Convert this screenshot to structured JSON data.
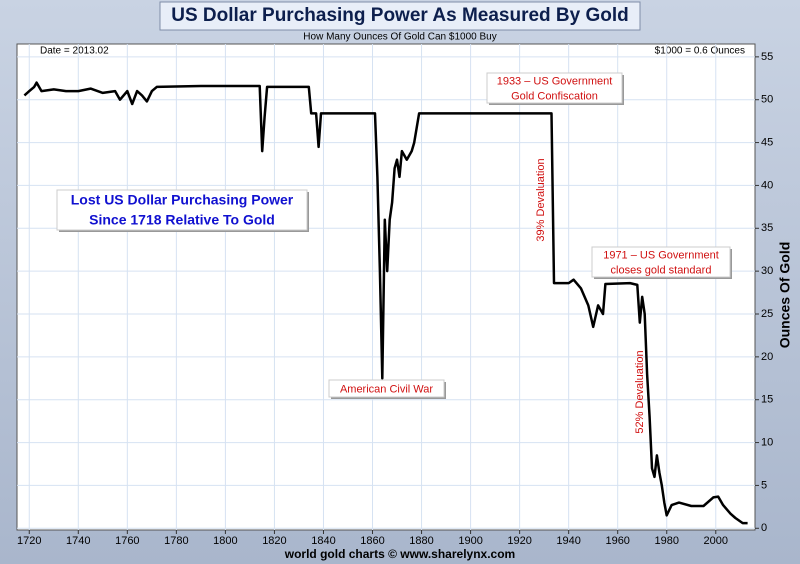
{
  "chart_data": {
    "type": "line",
    "title": "US Dollar Purchasing Power As Measured By Gold",
    "subtitle": "How Many Ounces Of Gold Can $1000 Buy",
    "date_label": "Date = 2013.02",
    "value_note": "$1000 = 0.6 Ounces",
    "y_label": "Ounces Of Gold",
    "footer": "world gold charts © www.sharelynx.com",
    "annotations": [
      {
        "lines": [
          "Lost US Dollar Purchasing Power",
          "Since 1718 Relative To Gold"
        ]
      },
      {
        "lines": [
          "1933 – US Government",
          "Gold Confiscation"
        ]
      },
      {
        "lines": [
          "1971 – US Government",
          "closes gold standard"
        ]
      },
      {
        "lines": [
          "American Civil War"
        ]
      },
      {
        "lines": [
          "39% Devaluation"
        ]
      },
      {
        "lines": [
          "52% Devaluation"
        ]
      }
    ],
    "x": [
      1718,
      1720,
      1722,
      1723,
      1725,
      1730,
      1735,
      1740,
      1745,
      1750,
      1755,
      1757,
      1760,
      1762,
      1764,
      1766,
      1768,
      1770,
      1772,
      1790,
      1810,
      1814,
      1815,
      1816,
      1817,
      1834,
      1835,
      1837,
      1838,
      1839,
      1861,
      1862,
      1863,
      1864,
      1865,
      1866,
      1867,
      1868,
      1869,
      1870,
      1871,
      1872,
      1874,
      1876,
      1877,
      1879,
      1933,
      1934,
      1940,
      1942,
      1945,
      1948,
      1950,
      1952,
      1954,
      1955,
      1965,
      1968,
      1969,
      1970,
      1971,
      1972,
      1973,
      1974,
      1975,
      1976,
      1977,
      1978,
      1979,
      1980,
      1982,
      1985,
      1990,
      1995,
      1999,
      2001,
      2003,
      2006,
      2008,
      2011,
      2013
    ],
    "series": [
      {
        "name": "Ounces Of Gold",
        "color": "#000000",
        "values": [
          50.5,
          51,
          51.5,
          52,
          51,
          51.2,
          51,
          51,
          51.3,
          50.8,
          51,
          50,
          51,
          49.5,
          51,
          50.5,
          49.8,
          51,
          51.5,
          51.6,
          51.6,
          51.6,
          44,
          48,
          51.5,
          51.5,
          48.4,
          48.4,
          44.5,
          48.4,
          48.4,
          41,
          30,
          17.5,
          36,
          30,
          36,
          38,
          42,
          43,
          41,
          44,
          43,
          44,
          45,
          48.4,
          48.4,
          28.6,
          28.6,
          29,
          28,
          26,
          23.5,
          26,
          25,
          28.5,
          28.6,
          28.4,
          24,
          27,
          25,
          18,
          13,
          7,
          6,
          8.5,
          6.5,
          5,
          3,
          1.5,
          2.7,
          3,
          2.6,
          2.6,
          3.6,
          3.7,
          2.7,
          1.7,
          1.2,
          0.6,
          0.6
        ]
      }
    ],
    "xlim": [
      1715,
      2016
    ],
    "ylim": [
      -0.2,
      56.5
    ],
    "xticks": [
      1720,
      1740,
      1760,
      1780,
      1800,
      1820,
      1840,
      1860,
      1880,
      1900,
      1920,
      1940,
      1960,
      1980,
      2000
    ],
    "yticks": [
      0,
      5,
      10,
      15,
      20,
      25,
      30,
      35,
      40,
      45,
      50,
      55
    ],
    "grid": true
  }
}
